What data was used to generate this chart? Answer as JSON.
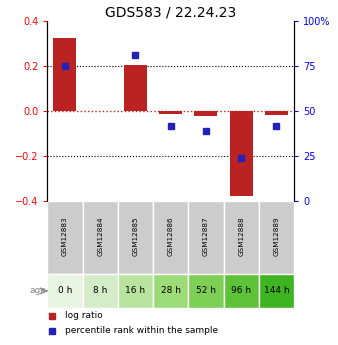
{
  "title": "GDS583 / 22.24.23",
  "samples": [
    "GSM12883",
    "GSM12884",
    "GSM12885",
    "GSM12886",
    "GSM12887",
    "GSM12888",
    "GSM12889"
  ],
  "ages": [
    "0 h",
    "8 h",
    "16 h",
    "28 h",
    "52 h",
    "96 h",
    "144 h"
  ],
  "log_ratios": [
    0.325,
    0.0,
    0.205,
    -0.012,
    -0.022,
    -0.375,
    -0.018
  ],
  "percentile_ranks": [
    75,
    null,
    81,
    42,
    39,
    24,
    42
  ],
  "ylim_left": [
    -0.4,
    0.4
  ],
  "ylim_right": [
    0,
    100
  ],
  "bar_color": "#bb2222",
  "dot_color": "#2222bb",
  "zeroline_color": "#cc2222",
  "sample_bg": "#cccccc",
  "age_colors": [
    "#e8f5e2",
    "#d4edc8",
    "#b8e4a0",
    "#9ddb78",
    "#7dcf55",
    "#5ec238",
    "#3db520"
  ],
  "legend_bar_label": "log ratio",
  "legend_dot_label": "percentile rank within the sample",
  "bar_width": 0.65
}
